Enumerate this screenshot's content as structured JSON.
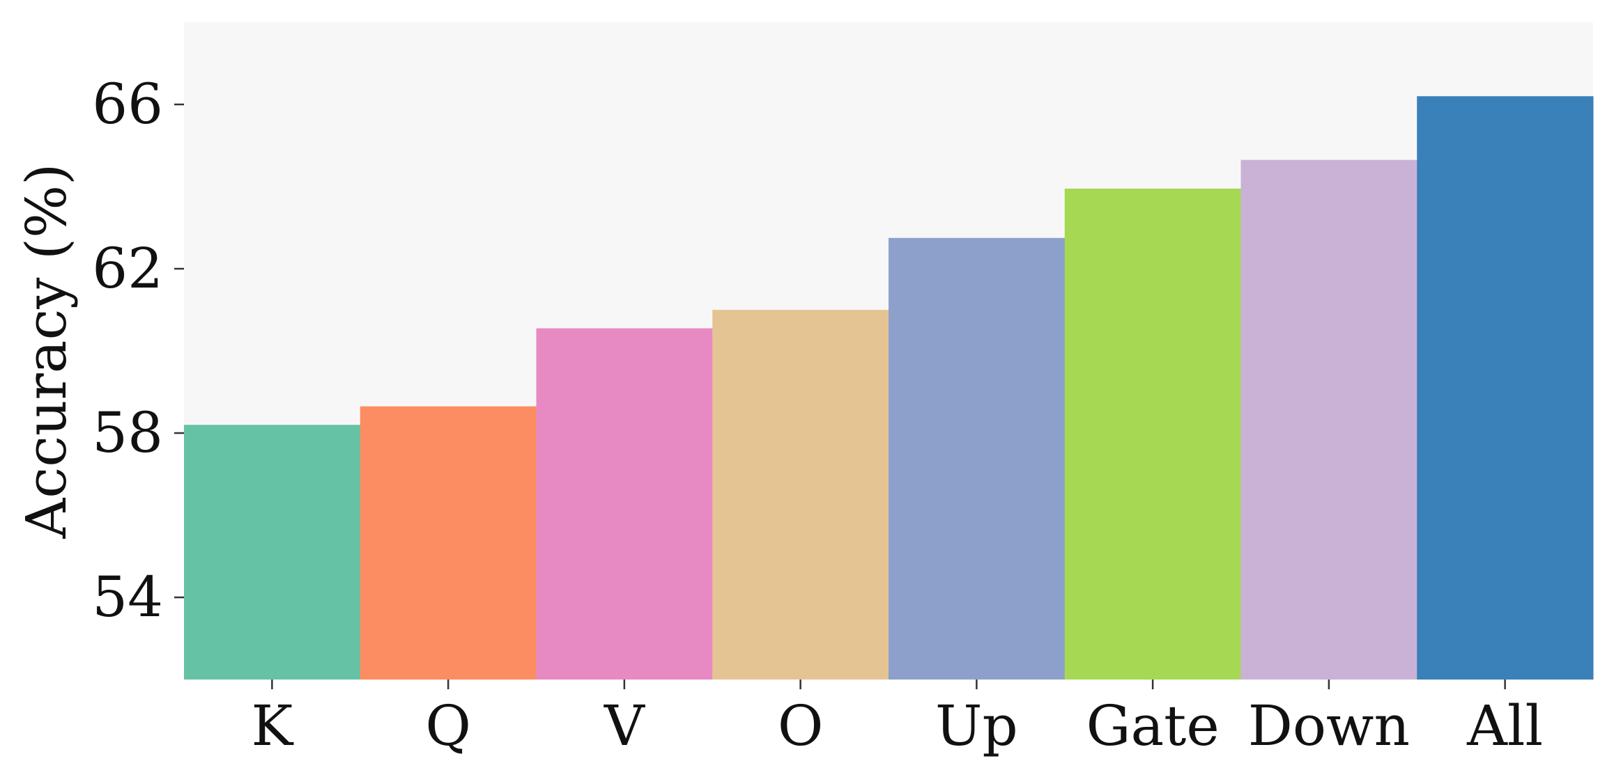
{
  "chart_data": {
    "type": "bar",
    "title": "",
    "xlabel": "",
    "ylabel": "Accuracy (%)",
    "categories": [
      "K",
      "Q",
      "V",
      "O",
      "Up",
      "Gate",
      "Down",
      "All"
    ],
    "values": [
      58.2,
      58.65,
      60.55,
      61.0,
      62.75,
      63.95,
      64.65,
      66.2
    ],
    "colors": [
      "#66c2a5",
      "#fc8d62",
      "#e78ac3",
      "#e5c494",
      "#8da0cb",
      "#a6d854",
      "#cab2d6",
      "#3a80b9"
    ],
    "ylim": [
      52,
      68
    ],
    "yticks": [
      "54",
      "58",
      "62",
      "66"
    ],
    "ytick_values": [
      54,
      58,
      62,
      66
    ],
    "grid": false,
    "background": "#f7f7f7",
    "legend": "none"
  }
}
